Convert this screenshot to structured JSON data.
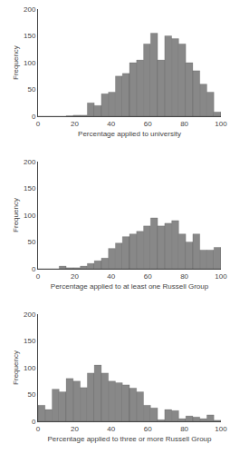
{
  "chart_data": [
    {
      "type": "histogram",
      "xlabel": "Percentage applied to university",
      "ylabel": "Frequency",
      "bins": [
        0,
        3.8461538461538463,
        7.6923076923076925,
        11.538461538461538,
        15.384615384615385,
        19.23076923076923,
        23.076923076923077,
        26.923076923076923,
        30.76923076923077,
        34.61538461538461,
        38.46153846153846,
        42.30769230769231,
        46.15384615384615,
        50.0,
        53.84615384615385,
        57.69230769230769,
        61.53846153846154,
        65.38461538461539,
        69.23076923076923,
        73.07692307692308,
        76.92307692307692,
        80.76923076923077,
        84.61538461538461,
        88.46153846153847,
        92.3076923076923,
        96.15384615384616,
        100.0
      ],
      "values": [
        0,
        0,
        0,
        0,
        1,
        2,
        2,
        25,
        20,
        42,
        45,
        75,
        80,
        100,
        105,
        135,
        155,
        105,
        150,
        145,
        135,
        100,
        85,
        60,
        45,
        8
      ],
      "color": "#888888",
      "xlim": [
        0,
        100
      ],
      "xticks": [
        0,
        20,
        40,
        60,
        80,
        100
      ],
      "ylim": [
        0,
        200
      ],
      "yticks": [
        0,
        50,
        100,
        150,
        200
      ],
      "grid": false
    },
    {
      "type": "histogram",
      "xlabel": "Percentage applied to at least one Russell Group",
      "ylabel": "Frequency",
      "bins": [
        0,
        3.8461538461538463,
        7.6923076923076925,
        11.538461538461538,
        15.384615384615385,
        19.23076923076923,
        23.076923076923077,
        26.923076923076923,
        30.76923076923077,
        34.61538461538461,
        38.46153846153846,
        42.30769230769231,
        46.15384615384615,
        50.0,
        53.84615384615385,
        57.69230769230769,
        61.53846153846154,
        65.38461538461539,
        69.23076923076923,
        73.07692307692308,
        76.92307692307692,
        80.76923076923077,
        84.61538461538461,
        88.46153846153847,
        92.3076923076923,
        96.15384615384616,
        100.0
      ],
      "values": [
        0,
        0,
        0,
        5,
        2,
        2,
        5,
        10,
        15,
        20,
        38,
        48,
        60,
        65,
        70,
        80,
        95,
        80,
        85,
        90,
        65,
        50,
        65,
        35,
        35,
        40
      ],
      "color": "#888888",
      "xlim": [
        0,
        100
      ],
      "xticks": [
        0,
        20,
        40,
        60,
        80,
        100
      ],
      "ylim": [
        0,
        200
      ],
      "yticks": [
        0,
        50,
        100,
        150,
        200
      ],
      "grid": false
    },
    {
      "type": "histogram",
      "xlabel": "Percentage applied to three or more Russell Group",
      "ylabel": "Frequency",
      "bins": [
        0,
        3.8461538461538463,
        7.6923076923076925,
        11.538461538461538,
        15.384615384615385,
        19.23076923076923,
        23.076923076923077,
        26.923076923076923,
        30.76923076923077,
        34.61538461538461,
        38.46153846153846,
        42.30769230769231,
        46.15384615384615,
        50.0,
        53.84615384615385,
        57.69230769230769,
        61.53846153846154,
        65.38461538461539,
        69.23076923076923,
        73.07692307692308,
        76.92307692307692,
        80.76923076923077,
        84.61538461538461,
        88.46153846153847,
        92.3076923076923,
        96.15384615384616,
        100.0
      ],
      "values": [
        30,
        22,
        60,
        55,
        80,
        75,
        63,
        90,
        105,
        90,
        75,
        72,
        68,
        62,
        55,
        30,
        25,
        3,
        22,
        20,
        5,
        10,
        8,
        5,
        12,
        2
      ],
      "color": "#888888",
      "xlim": [
        0,
        100
      ],
      "xticks": [
        0,
        20,
        40,
        60,
        80,
        100
      ],
      "ylim": [
        0,
        200
      ],
      "yticks": [
        0,
        50,
        100,
        150,
        200
      ],
      "grid": false
    }
  ]
}
